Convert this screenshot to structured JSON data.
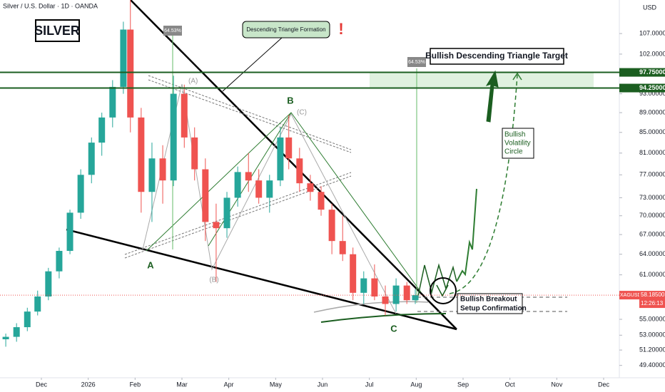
{
  "chart_data": {
    "type": "candlestick",
    "title": "Silver / U.S. Dollar · 1D · OANDA",
    "currency": "USD",
    "log_scale": true,
    "xlim": [
      -0.883,
      12.335
    ],
    "ylim": [
      48,
      115.7
    ],
    "xticks": [
      {
        "value": 0,
        "label": "Dec"
      },
      {
        "value": 1,
        "label": "2026"
      },
      {
        "value": 2,
        "label": "Feb"
      },
      {
        "value": 3,
        "label": "Mar"
      },
      {
        "value": 4,
        "label": "Apr"
      },
      {
        "value": 5,
        "label": "May"
      },
      {
        "value": 6,
        "label": "Jun"
      },
      {
        "value": 7,
        "label": "Jul"
      },
      {
        "value": 8,
        "label": "Aug"
      },
      {
        "value": 9,
        "label": "Sep"
      },
      {
        "value": 10,
        "label": "Oct"
      },
      {
        "value": 11,
        "label": "Nov"
      },
      {
        "value": 12,
        "label": "Dec"
      }
    ],
    "yticks": [
      {
        "value": 107,
        "label": "107.00000"
      },
      {
        "value": 102,
        "label": "102.00000"
      },
      {
        "value": 93,
        "label": "93.00000"
      },
      {
        "value": 89,
        "label": "89.00000"
      },
      {
        "value": 85,
        "label": "85.00000"
      },
      {
        "value": 81,
        "label": "81.00000"
      },
      {
        "value": 77,
        "label": "77.00000"
      },
      {
        "value": 73,
        "label": "73.00000"
      },
      {
        "value": 70,
        "label": "70.00000"
      },
      {
        "value": 67,
        "label": "67.00000"
      },
      {
        "value": 64,
        "label": "64.00000"
      },
      {
        "value": 61,
        "label": "61.00000"
      },
      {
        "value": 55,
        "label": "55.00000"
      },
      {
        "value": 53,
        "label": "53.00000"
      },
      {
        "value": 51.2,
        "label": "51.20000"
      },
      {
        "value": 49.4,
        "label": "49.40000"
      }
    ],
    "levels": [
      {
        "value": 97.75,
        "label": "97.75000"
      },
      {
        "value": 94.25,
        "label": "94.25000"
      }
    ],
    "level_color": "#1b5e20",
    "last_price": {
      "value": 58.185,
      "label": "58.18500"
    },
    "symbol": "XAGUSD",
    "countdown": "12:26:13",
    "up_color": "#26a69a",
    "down_color": "#ef5350",
    "x": [
      -0.76,
      -0.53,
      -0.3,
      -0.08,
      0.15,
      0.38,
      0.61,
      0.84,
      1.07,
      1.29,
      1.52,
      1.75,
      1.9,
      2.13,
      2.36,
      2.59,
      2.82,
      3.05,
      3.27,
      3.5,
      3.73,
      3.96,
      4.19,
      4.42,
      4.64,
      4.87,
      5.1,
      5.28,
      5.51,
      5.74,
      5.97,
      6.2,
      6.43,
      6.65,
      6.88,
      7.11,
      7.34,
      7.57,
      7.8,
      7.98
    ],
    "open": [
      52.5,
      52.8,
      54.0,
      56.0,
      58.0,
      61.5,
      64.5,
      70.5,
      77.0,
      83.0,
      88.0,
      94.5,
      108.0,
      88.0,
      74.0,
      80.0,
      76.0,
      93.0,
      84.0,
      78.0,
      69.0,
      68.0,
      73.0,
      77.5,
      76.0,
      73.0,
      76.0,
      84.0,
      80.0,
      75.5,
      74.0,
      71.0,
      66.0,
      64.0,
      58.5,
      60.5,
      58.0,
      57.0,
      59.5,
      57.5
    ],
    "high": [
      53.2,
      54.5,
      56.5,
      58.8,
      62.0,
      65.0,
      71.0,
      78.0,
      84.0,
      89.0,
      96.0,
      110.0,
      116.0,
      90.0,
      83.0,
      82.5,
      97.0,
      95.0,
      86.0,
      80.0,
      72.0,
      74.0,
      78.5,
      81.0,
      78.0,
      77.0,
      86.0,
      88.5,
      82.0,
      77.0,
      75.0,
      72.0,
      70.0,
      65.0,
      61.5,
      62.5,
      59.5,
      60.5,
      60.0,
      59.0
    ],
    "low": [
      51.6,
      52.2,
      53.5,
      55.5,
      57.5,
      60.5,
      64.0,
      69.5,
      75.5,
      80.5,
      86.0,
      93.0,
      85.0,
      70.5,
      69.0,
      72.0,
      75.0,
      82.0,
      76.0,
      66.0,
      60.0,
      66.5,
      71.5,
      74.0,
      72.0,
      70.5,
      75.0,
      78.0,
      74.0,
      72.5,
      70.0,
      64.0,
      63.0,
      57.5,
      57.0,
      57.5,
      55.5,
      56.0,
      57.0,
      57.0
    ],
    "close": [
      52.8,
      54.0,
      56.0,
      58.0,
      61.5,
      64.5,
      70.5,
      77.0,
      83.0,
      88.0,
      94.5,
      108.0,
      88.0,
      74.0,
      80.0,
      76.0,
      93.0,
      84.0,
      78.0,
      69.0,
      68.0,
      73.0,
      77.5,
      76.0,
      73.0,
      76.0,
      84.0,
      80.0,
      75.5,
      74.0,
      71.0,
      66.0,
      64.0,
      58.5,
      60.5,
      58.0,
      57.0,
      59.5,
      57.5,
      58.185
    ],
    "annotations": {
      "symbol_box": "SILVER",
      "pattern": "Descending Triangle Formation",
      "alert": "!",
      "measure_1": "64.53%",
      "measure_2": "64.53%",
      "target": "Bullish Descending Triangle Target",
      "wave_a_alt": "(A)",
      "wave_b": "B",
      "wave_c_alt": "(C)",
      "wave_a": "A",
      "wave_b_alt": "(B)",
      "wave_c": "C",
      "circle_1": "Bullish",
      "circle_2": "Volatility",
      "circle_3": "Circle",
      "breakout_1": "Bullish Breakout",
      "breakout_2": "Setup Confirmation"
    }
  }
}
